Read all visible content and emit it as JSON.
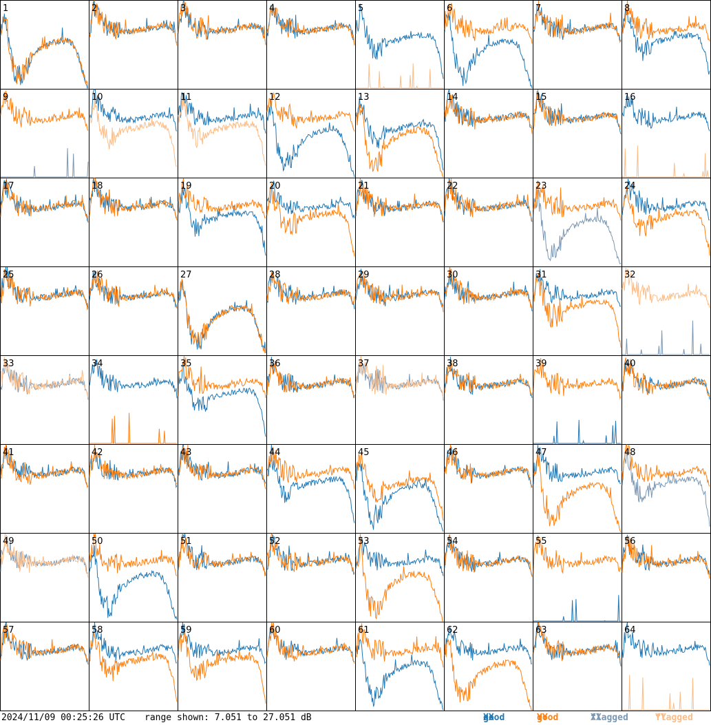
{
  "footer": {
    "timestamp": "2024/11/09 00:25:26 UTC",
    "range_text": "range shown: 7.051 to 27.051 dB"
  },
  "colors": {
    "good_xx": "#1f77b4",
    "good_yy": "#ff7f0e",
    "flagged_xx": "#7a97b3",
    "flagged_yy": "#fcbc86"
  },
  "chart_data": {
    "type": "line",
    "title": "",
    "xlabel": "",
    "ylabel": "",
    "ylim": [
      7.051,
      27.051
    ],
    "legend": {
      "placement": "bottom-right",
      "entries": [
        {
          "key": "good_xx",
          "label_a": "good ",
          "label_b": "XX"
        },
        {
          "key": "good_yy",
          "label_a": "good ",
          "label_b": "YY"
        },
        {
          "key": "flagged_xx",
          "label_a": "flagged ",
          "label_b": "XX"
        },
        {
          "key": "flagged_yy",
          "label_a": "flagged ",
          "label_b": "YY"
        }
      ]
    },
    "profiles": {
      "nominal": [
        20.2,
        25.6,
        23.4,
        21.6,
        20.6,
        20.9,
        20.4,
        20.1,
        20.0,
        20.1,
        20.2,
        20.4,
        20.5,
        20.7,
        20.9,
        21.1,
        21.4,
        21.2,
        20.9,
        17.5
      ],
      "xx_dip": [
        19.8,
        24.4,
        20.7,
        17.2,
        15.3,
        15.6,
        16.6,
        17.4,
        17.8,
        18.1,
        18.3,
        18.6,
        18.8,
        19.0,
        19.1,
        19.2,
        19.0,
        18.2,
        15.0,
        9.0
      ],
      "deep_u": [
        20.0,
        23.5,
        15.5,
        10.8,
        9.6,
        10.5,
        12.8,
        14.6,
        15.6,
        16.3,
        16.8,
        17.3,
        17.6,
        17.8,
        17.8,
        17.5,
        16.8,
        14.0,
        10.0,
        7.2
      ],
      "tiny_spikes": [
        7.1,
        7.1,
        7.1,
        7.1,
        7.1,
        7.1,
        7.1,
        7.1,
        7.1,
        7.1,
        7.1,
        7.1,
        7.1,
        7.1,
        7.1,
        7.1,
        7.1,
        7.1,
        7.1,
        7.1
      ]
    },
    "series": [
      {
        "tile": 1,
        "xx": "deep_u",
        "yy": "deep_u",
        "xx_flagged": false,
        "yy_flagged": false
      },
      {
        "tile": 2,
        "xx": "nominal",
        "yy": "nominal",
        "xx_flagged": false,
        "yy_flagged": false
      },
      {
        "tile": 3,
        "xx": "nominal",
        "yy": "nominal",
        "xx_flagged": false,
        "yy_flagged": false
      },
      {
        "tile": 4,
        "xx": "nominal",
        "yy": "nominal",
        "xx_flagged": false,
        "yy_flagged": false
      },
      {
        "tile": 5,
        "xx": "xx_dip",
        "yy": "tiny_spikes",
        "xx_flagged": false,
        "yy_flagged": true
      },
      {
        "tile": 6,
        "xx": "deep_u",
        "yy": "nominal",
        "xx_flagged": false,
        "yy_flagged": false
      },
      {
        "tile": 7,
        "xx": "nominal",
        "yy": "nominal",
        "xx_flagged": false,
        "yy_flagged": false
      },
      {
        "tile": 8,
        "xx": "xx_dip",
        "yy": "nominal",
        "xx_flagged": false,
        "yy_flagged": false
      },
      {
        "tile": 9,
        "xx": "tiny_spikes",
        "yy": "nominal",
        "xx_flagged": true,
        "yy_flagged": false
      },
      {
        "tile": 10,
        "xx": "nominal",
        "yy": "xx_dip",
        "xx_flagged": false,
        "yy_flagged": true
      },
      {
        "tile": 11,
        "xx": "nominal",
        "yy": "xx_dip",
        "xx_flagged": false,
        "yy_flagged": true
      },
      {
        "tile": 12,
        "xx": "deep_u",
        "yy": "nominal",
        "xx_flagged": false,
        "yy_flagged": false
      },
      {
        "tile": 13,
        "xx": "xx_dip",
        "yy": "deep_u",
        "xx_flagged": false,
        "yy_flagged": false
      },
      {
        "tile": 14,
        "xx": "nominal",
        "yy": "nominal",
        "xx_flagged": false,
        "yy_flagged": false
      },
      {
        "tile": 15,
        "xx": "nominal",
        "yy": "nominal",
        "xx_flagged": false,
        "yy_flagged": false
      },
      {
        "tile": 16,
        "xx": "nominal",
        "yy": "tiny_spikes",
        "xx_flagged": false,
        "yy_flagged": true
      },
      {
        "tile": 17,
        "xx": "nominal",
        "yy": "nominal",
        "xx_flagged": false,
        "yy_flagged": false
      },
      {
        "tile": 18,
        "xx": "nominal",
        "yy": "nominal",
        "xx_flagged": false,
        "yy_flagged": false
      },
      {
        "tile": 19,
        "xx": "xx_dip",
        "yy": "nominal",
        "xx_flagged": false,
        "yy_flagged": false
      },
      {
        "tile": 20,
        "xx": "nominal",
        "yy": "xx_dip",
        "xx_flagged": false,
        "yy_flagged": false
      },
      {
        "tile": 21,
        "xx": "nominal",
        "yy": "nominal",
        "xx_flagged": false,
        "yy_flagged": false
      },
      {
        "tile": 22,
        "xx": "nominal",
        "yy": "nominal",
        "xx_flagged": false,
        "yy_flagged": false
      },
      {
        "tile": 23,
        "xx": "deep_u",
        "yy": "nominal",
        "xx_flagged": true,
        "yy_flagged": false
      },
      {
        "tile": 24,
        "xx": "nominal",
        "yy": "xx_dip",
        "xx_flagged": false,
        "yy_flagged": false
      },
      {
        "tile": 25,
        "xx": "nominal",
        "yy": "nominal",
        "xx_flagged": false,
        "yy_flagged": false
      },
      {
        "tile": 26,
        "xx": "nominal",
        "yy": "nominal",
        "xx_flagged": false,
        "yy_flagged": false
      },
      {
        "tile": 27,
        "xx": "deep_u",
        "yy": "deep_u",
        "xx_flagged": false,
        "yy_flagged": false
      },
      {
        "tile": 28,
        "xx": "nominal",
        "yy": "nominal",
        "xx_flagged": false,
        "yy_flagged": false
      },
      {
        "tile": 29,
        "xx": "nominal",
        "yy": "nominal",
        "xx_flagged": false,
        "yy_flagged": false
      },
      {
        "tile": 30,
        "xx": "nominal",
        "yy": "nominal",
        "xx_flagged": false,
        "yy_flagged": false
      },
      {
        "tile": 31,
        "xx": "nominal",
        "yy": "xx_dip",
        "xx_flagged": false,
        "yy_flagged": false
      },
      {
        "tile": 32,
        "xx": "tiny_spikes",
        "yy": "nominal",
        "xx_flagged": true,
        "yy_flagged": true
      },
      {
        "tile": 33,
        "xx": "nominal",
        "yy": "nominal",
        "xx_flagged": true,
        "yy_flagged": true
      },
      {
        "tile": 34,
        "xx": "nominal",
        "yy": "tiny_spikes",
        "xx_flagged": false,
        "yy_flagged": false
      },
      {
        "tile": 35,
        "xx": "xx_dip",
        "yy": "nominal",
        "xx_flagged": false,
        "yy_flagged": false
      },
      {
        "tile": 36,
        "xx": "nominal",
        "yy": "nominal",
        "xx_flagged": false,
        "yy_flagged": false
      },
      {
        "tile": 37,
        "xx": "nominal",
        "yy": "nominal",
        "xx_flagged": true,
        "yy_flagged": true
      },
      {
        "tile": 38,
        "xx": "nominal",
        "yy": "nominal",
        "xx_flagged": false,
        "yy_flagged": false
      },
      {
        "tile": 39,
        "xx": "tiny_spikes",
        "yy": "nominal",
        "xx_flagged": false,
        "yy_flagged": false
      },
      {
        "tile": 40,
        "xx": "nominal",
        "yy": "nominal",
        "xx_flagged": false,
        "yy_flagged": false
      },
      {
        "tile": 41,
        "xx": "nominal",
        "yy": "nominal",
        "xx_flagged": false,
        "yy_flagged": false
      },
      {
        "tile": 42,
        "xx": "nominal",
        "yy": "nominal",
        "xx_flagged": false,
        "yy_flagged": false
      },
      {
        "tile": 43,
        "xx": "nominal",
        "yy": "nominal",
        "xx_flagged": false,
        "yy_flagged": false
      },
      {
        "tile": 44,
        "xx": "xx_dip",
        "yy": "nominal",
        "xx_flagged": false,
        "yy_flagged": false
      },
      {
        "tile": 45,
        "xx": "deep_u",
        "yy": "xx_dip",
        "xx_flagged": false,
        "yy_flagged": false
      },
      {
        "tile": 46,
        "xx": "nominal",
        "yy": "nominal",
        "xx_flagged": false,
        "yy_flagged": false
      },
      {
        "tile": 47,
        "xx": "nominal",
        "yy": "deep_u",
        "xx_flagged": false,
        "yy_flagged": false
      },
      {
        "tile": 48,
        "xx": "xx_dip",
        "yy": "nominal",
        "xx_flagged": true,
        "yy_flagged": false
      },
      {
        "tile": 49,
        "xx": "nominal",
        "yy": "nominal",
        "xx_flagged": true,
        "yy_flagged": true
      },
      {
        "tile": 50,
        "xx": "deep_u",
        "yy": "nominal",
        "xx_flagged": false,
        "yy_flagged": false
      },
      {
        "tile": 51,
        "xx": "nominal",
        "yy": "nominal",
        "xx_flagged": false,
        "yy_flagged": false
      },
      {
        "tile": 52,
        "xx": "nominal",
        "yy": "nominal",
        "xx_flagged": false,
        "yy_flagged": false
      },
      {
        "tile": 53,
        "xx": "nominal",
        "yy": "deep_u",
        "xx_flagged": false,
        "yy_flagged": false
      },
      {
        "tile": 54,
        "xx": "nominal",
        "yy": "nominal",
        "xx_flagged": false,
        "yy_flagged": false
      },
      {
        "tile": 55,
        "xx": "tiny_spikes",
        "yy": "nominal",
        "xx_flagged": false,
        "yy_flagged": false
      },
      {
        "tile": 56,
        "xx": "nominal",
        "yy": "nominal",
        "xx_flagged": false,
        "yy_flagged": false
      },
      {
        "tile": 57,
        "xx": "nominal",
        "yy": "nominal",
        "xx_flagged": false,
        "yy_flagged": false
      },
      {
        "tile": 58,
        "xx": "nominal",
        "yy": "xx_dip",
        "xx_flagged": false,
        "yy_flagged": false
      },
      {
        "tile": 59,
        "xx": "nominal",
        "yy": "xx_dip",
        "xx_flagged": false,
        "yy_flagged": false
      },
      {
        "tile": 60,
        "xx": "nominal",
        "yy": "nominal",
        "xx_flagged": false,
        "yy_flagged": false
      },
      {
        "tile": 61,
        "xx": "deep_u",
        "yy": "nominal",
        "xx_flagged": false,
        "yy_flagged": false
      },
      {
        "tile": 62,
        "xx": "nominal",
        "yy": "deep_u",
        "xx_flagged": false,
        "yy_flagged": false
      },
      {
        "tile": 63,
        "xx": "nominal",
        "yy": "nominal",
        "xx_flagged": false,
        "yy_flagged": false
      },
      {
        "tile": 64,
        "xx": "nominal",
        "yy": "tiny_spikes",
        "xx_flagged": false,
        "yy_flagged": true
      }
    ]
  }
}
